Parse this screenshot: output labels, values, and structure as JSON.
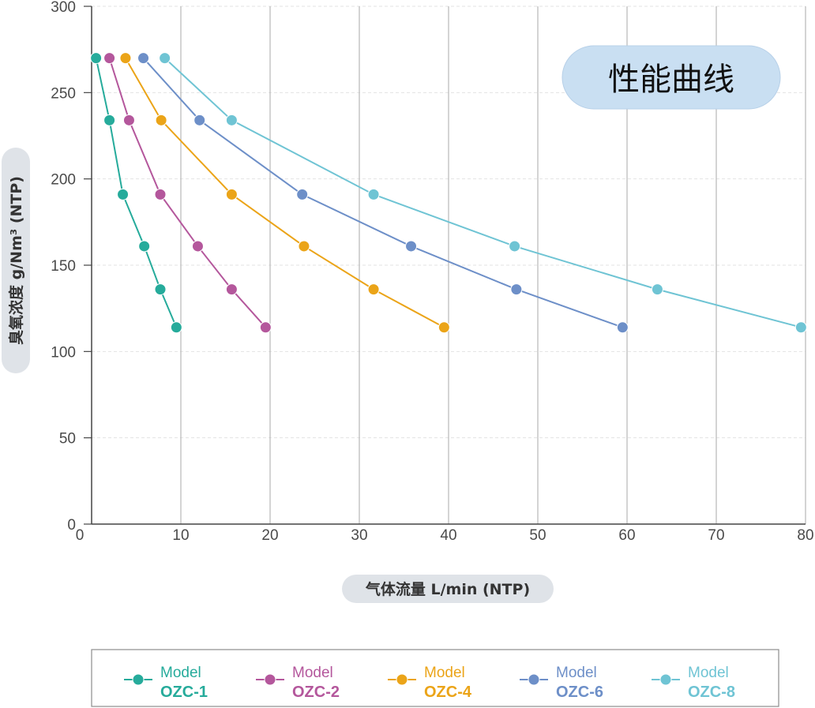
{
  "chart_data": {
    "type": "line",
    "title": "性能曲线",
    "xlabel": "气体流量 L/min (NTP)",
    "ylabel": "臭氧浓度 g/Nm³ (NTP)",
    "xlim": [
      0,
      80
    ],
    "ylim": [
      0,
      300
    ],
    "x_ticks": [
      0,
      10,
      20,
      30,
      40,
      50,
      60,
      70,
      80
    ],
    "y_ticks": [
      0,
      50,
      100,
      150,
      200,
      250,
      300
    ],
    "grid": "vertical solid lines, horizontal dashed lines",
    "legend_position": "bottom",
    "series": [
      {
        "prefix": "Model",
        "name": "OZC-1",
        "color": "#26ab9b",
        "points": [
          [
            0.5,
            270
          ],
          [
            2,
            234
          ],
          [
            3.5,
            191
          ],
          [
            5.9,
            161
          ],
          [
            7.7,
            136
          ],
          [
            9.5,
            114
          ]
        ]
      },
      {
        "prefix": "Model",
        "name": "OZC-2",
        "color": "#b4579c",
        "points": [
          [
            2,
            270
          ],
          [
            4.2,
            234
          ],
          [
            7.7,
            191
          ],
          [
            11.9,
            161
          ],
          [
            15.7,
            136
          ],
          [
            19.5,
            114
          ]
        ]
      },
      {
        "prefix": "Model",
        "name": "OZC-4",
        "color": "#eba418",
        "points": [
          [
            3.8,
            270
          ],
          [
            7.8,
            234
          ],
          [
            15.7,
            191
          ],
          [
            23.8,
            161
          ],
          [
            31.6,
            136
          ],
          [
            39.5,
            114
          ]
        ]
      },
      {
        "prefix": "Model",
        "name": "OZC-6",
        "color": "#6d8fc8",
        "points": [
          [
            5.8,
            270
          ],
          [
            12.1,
            234
          ],
          [
            23.6,
            191
          ],
          [
            35.8,
            161
          ],
          [
            47.6,
            136
          ],
          [
            59.5,
            114
          ]
        ]
      },
      {
        "prefix": "Model",
        "name": "OZC-8",
        "color": "#6fc4d4",
        "points": [
          [
            8.2,
            270
          ],
          [
            15.7,
            234
          ],
          [
            31.6,
            191
          ],
          [
            47.4,
            161
          ],
          [
            63.4,
            136
          ],
          [
            79.5,
            114
          ]
        ]
      }
    ]
  }
}
